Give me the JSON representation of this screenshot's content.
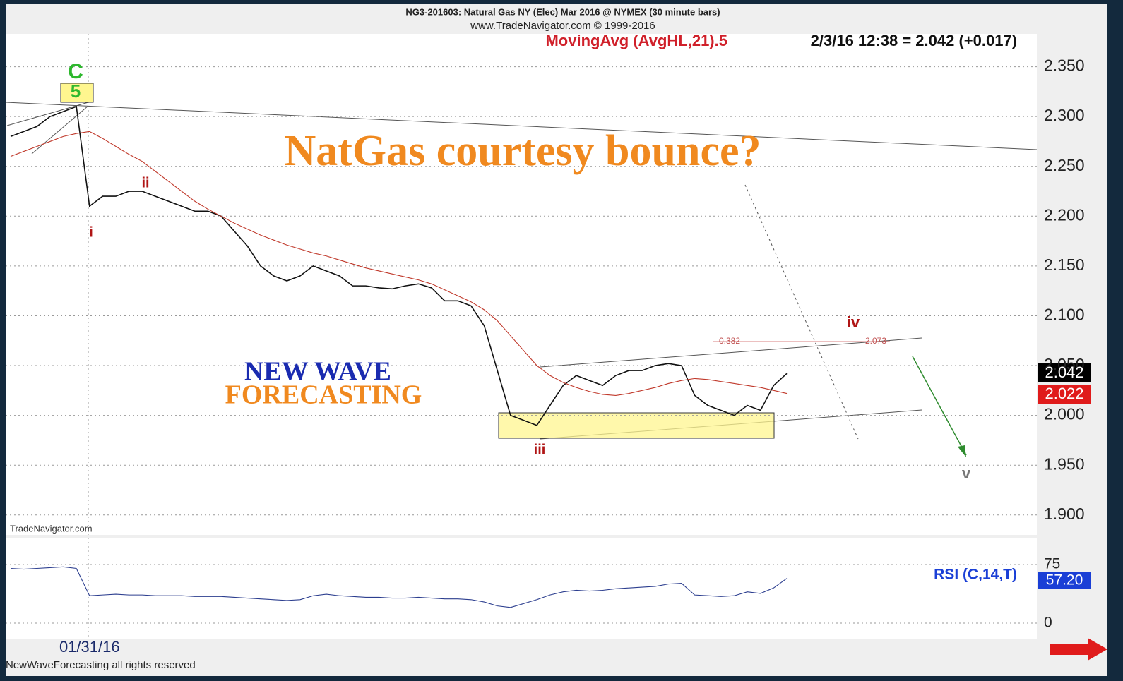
{
  "chart_data": [
    {
      "type": "line",
      "title": "NG3-201603: Natural Gas NY (Elec) Mar 2016 @ NYMEX  (30 minute bars)",
      "subtitle": "www.TradeNavigator.com © 1999-2016",
      "categories": [
        null,
        null,
        null,
        null,
        null,
        null,
        "01/31/16",
        null,
        null,
        null,
        null,
        null,
        null,
        null,
        null,
        null,
        null,
        null,
        null,
        null,
        null,
        null,
        null,
        null,
        null,
        null,
        null,
        null,
        null,
        null,
        null,
        null,
        null,
        null,
        null,
        null,
        null,
        null,
        null,
        null,
        null,
        null,
        null,
        null,
        null,
        null,
        null,
        null,
        null,
        null,
        null,
        null,
        null,
        null,
        null,
        null,
        null,
        null,
        null,
        null
      ],
      "series": [
        {
          "color": "#111111",
          "values": [
            2.28,
            2.285,
            2.29,
            2.3,
            2.305,
            2.31,
            2.21,
            2.22,
            2.22,
            2.225,
            2.225,
            2.22,
            2.215,
            2.21,
            2.205,
            2.205,
            2.2,
            2.185,
            2.17,
            2.15,
            2.14,
            2.135,
            2.14,
            2.15,
            2.145,
            2.14,
            2.13,
            2.13,
            2.128,
            2.127,
            2.13,
            2.132,
            2.128,
            2.115,
            2.115,
            2.11,
            2.09,
            2.045,
            2.0,
            1.995,
            1.99,
            2.01,
            2.03,
            2.04,
            2.035,
            2.03,
            2.04,
            2.045,
            2.045,
            2.05,
            2.052,
            2.05,
            2.02,
            2.01,
            2.005,
            2.0,
            2.01,
            2.005,
            2.03,
            2.042
          ]
        },
        {
          "name": "MovingAvg (AvgHL,21).5",
          "color": "#c0392b",
          "values": [
            2.26,
            2.265,
            2.27,
            2.275,
            2.28,
            2.283,
            2.285,
            2.278,
            2.27,
            2.262,
            2.255,
            2.245,
            2.235,
            2.225,
            2.215,
            2.207,
            2.2,
            2.193,
            2.187,
            2.181,
            2.176,
            2.171,
            2.167,
            2.163,
            2.16,
            2.156,
            2.152,
            2.148,
            2.145,
            2.142,
            2.139,
            2.136,
            2.132,
            2.126,
            2.12,
            2.114,
            2.106,
            2.095,
            2.08,
            2.065,
            2.05,
            2.04,
            2.033,
            2.028,
            2.024,
            2.021,
            2.02,
            2.022,
            2.025,
            2.028,
            2.032,
            2.035,
            2.037,
            2.036,
            2.034,
            2.032,
            2.03,
            2.028,
            2.025,
            2.022
          ]
        }
      ],
      "ylim": [
        1.88,
        2.383
      ],
      "yticks": [
        {
          "value": 1.9,
          "label": "1.900"
        },
        {
          "value": 1.95,
          "label": "1.950"
        },
        {
          "value": 2.0,
          "label": "2.000"
        },
        {
          "value": 2.05,
          "label": "2.050"
        },
        {
          "value": 2.1,
          "label": "2.100"
        },
        {
          "value": 2.15,
          "label": "2.150"
        },
        {
          "value": 2.2,
          "label": "2.200"
        },
        {
          "value": 2.25,
          "label": "2.250"
        },
        {
          "value": 2.3,
          "label": "2.300"
        },
        {
          "value": 2.35,
          "label": "2.350"
        }
      ],
      "grid": true,
      "annotations": [
        "2/3/16 12:38 = 2.042 (+0.017)",
        "NatGas courtesy bounce?",
        "NEW WAVE",
        "FORECASTING",
        "C",
        "5",
        "i",
        "ii",
        "iii",
        "iv",
        "v",
        "0.382",
        "2.073",
        "2.042",
        "2.022",
        "TradeNavigator.com",
        "NewWaveForecasting all rights reserved"
      ]
    },
    {
      "type": "line",
      "title": "RSI (C,14,T)",
      "series": [
        {
          "color": "#2c3e8f",
          "values": [
            70,
            69,
            70,
            71,
            72,
            70,
            35,
            36,
            37,
            36,
            36,
            35,
            35,
            35,
            34,
            34,
            34,
            33,
            32,
            31,
            30,
            29,
            30,
            35,
            37,
            35,
            34,
            33,
            33,
            32,
            32,
            33,
            32,
            31,
            31,
            30,
            27,
            22,
            20,
            25,
            30,
            36,
            40,
            42,
            41,
            42,
            44,
            45,
            46,
            47,
            50,
            51,
            36,
            35,
            34,
            35,
            40,
            38,
            45,
            57.2
          ]
        }
      ],
      "value_label": "57.20",
      "ylim": [
        -19.9,
        109.3
      ],
      "yticks": [
        0,
        75
      ],
      "grid": true
    }
  ]
}
